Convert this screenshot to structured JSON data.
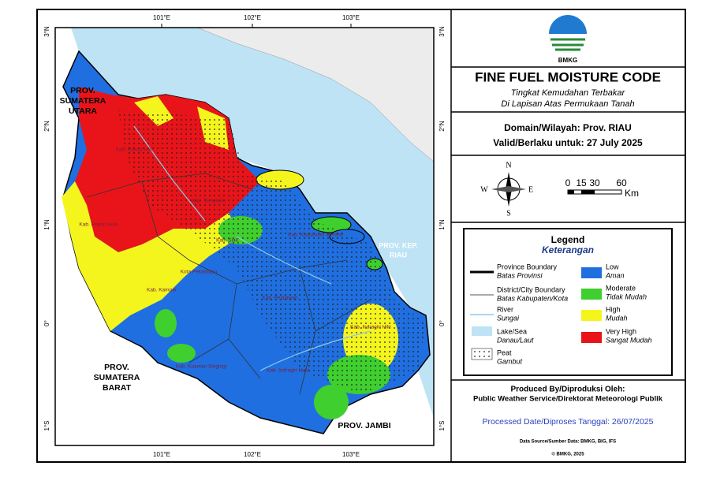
{
  "map": {
    "longitude_labels": [
      "101°E",
      "102°E",
      "103°E"
    ],
    "latitude_labels": [
      "3°N",
      "2°N",
      "1°N",
      "0°",
      "1°S"
    ],
    "region_labels": {
      "sumut": [
        "PROV.",
        "SUMATERA",
        "UTARA"
      ],
      "sumbar": [
        "PROV.",
        "SUMATERA",
        "BARAT"
      ],
      "jambi": "PROV. JAMBI",
      "kepri": [
        "PROV. KEP.",
        "RIAU"
      ],
      "districts": [
        "Kab. Rokan Hilir",
        "Kab. Rokan Hulu",
        "Kab. Bengkalis",
        "Kab. Siak",
        "Kota Pekanbaru",
        "Kab. Kampar",
        "Kab. Pelalawan",
        "Kab. Kuantan Singingi",
        "Kab. Indragiri Hulu",
        "Kab. Indragiri Hilir",
        "Kab. Kepulauan Meranti"
      ]
    }
  },
  "header": {
    "logo_text": "BMKG",
    "title": "FINE FUEL MOISTURE CODE",
    "subtitle_1": "Tingkat Kemudahan Terbakar",
    "subtitle_2": "Di Lapisan Atas Permukaan Tanah",
    "domain": "Domain/Wilayah: Prov. RIAU",
    "valid": "Valid/Berlaku untuk: 27 July 2025"
  },
  "compass": {
    "n": "N",
    "s": "S",
    "e": "E",
    "w": "W"
  },
  "scale_bar": {
    "labels": [
      "0",
      "15",
      "30",
      "60"
    ],
    "unit": "Km"
  },
  "legend": {
    "title": "Legend",
    "subtitle": "Keterangan",
    "features": [
      {
        "label": "Province Boundary",
        "label_id": "Batas Provinsi"
      },
      {
        "label": "District/City Boundary",
        "label_id": "Batas Kabupaten/Kota"
      },
      {
        "label": "River",
        "label_id": "Sungai"
      },
      {
        "label": "Lake/Sea",
        "label_id": "Danau/Laut"
      },
      {
        "label": "Peat",
        "label_id": "Gambut"
      }
    ],
    "classes": [
      {
        "label": "Low",
        "label_id": "Aman",
        "color": "#1f6fe0"
      },
      {
        "label": "Moderate",
        "label_id": "Tidak Mudah",
        "color": "#3fcf2e"
      },
      {
        "label": "High",
        "label_id": "Mudah",
        "color": "#f5f51e"
      },
      {
        "label": "Very High",
        "label_id": "Sangat Mudah",
        "color": "#e8141a"
      }
    ]
  },
  "footer": {
    "produced_by": "Produced By/Diproduksi Oleh:",
    "producer": "Public Weather Service/Direktorat Meteorologi Publik",
    "processed_date": "Processed Date/Diproses Tanggal: 26/07/2025",
    "data_source": "Data Source/Sumber Data: BMKG, BIG, IFS",
    "copyright": "© BMKG, 2025"
  }
}
